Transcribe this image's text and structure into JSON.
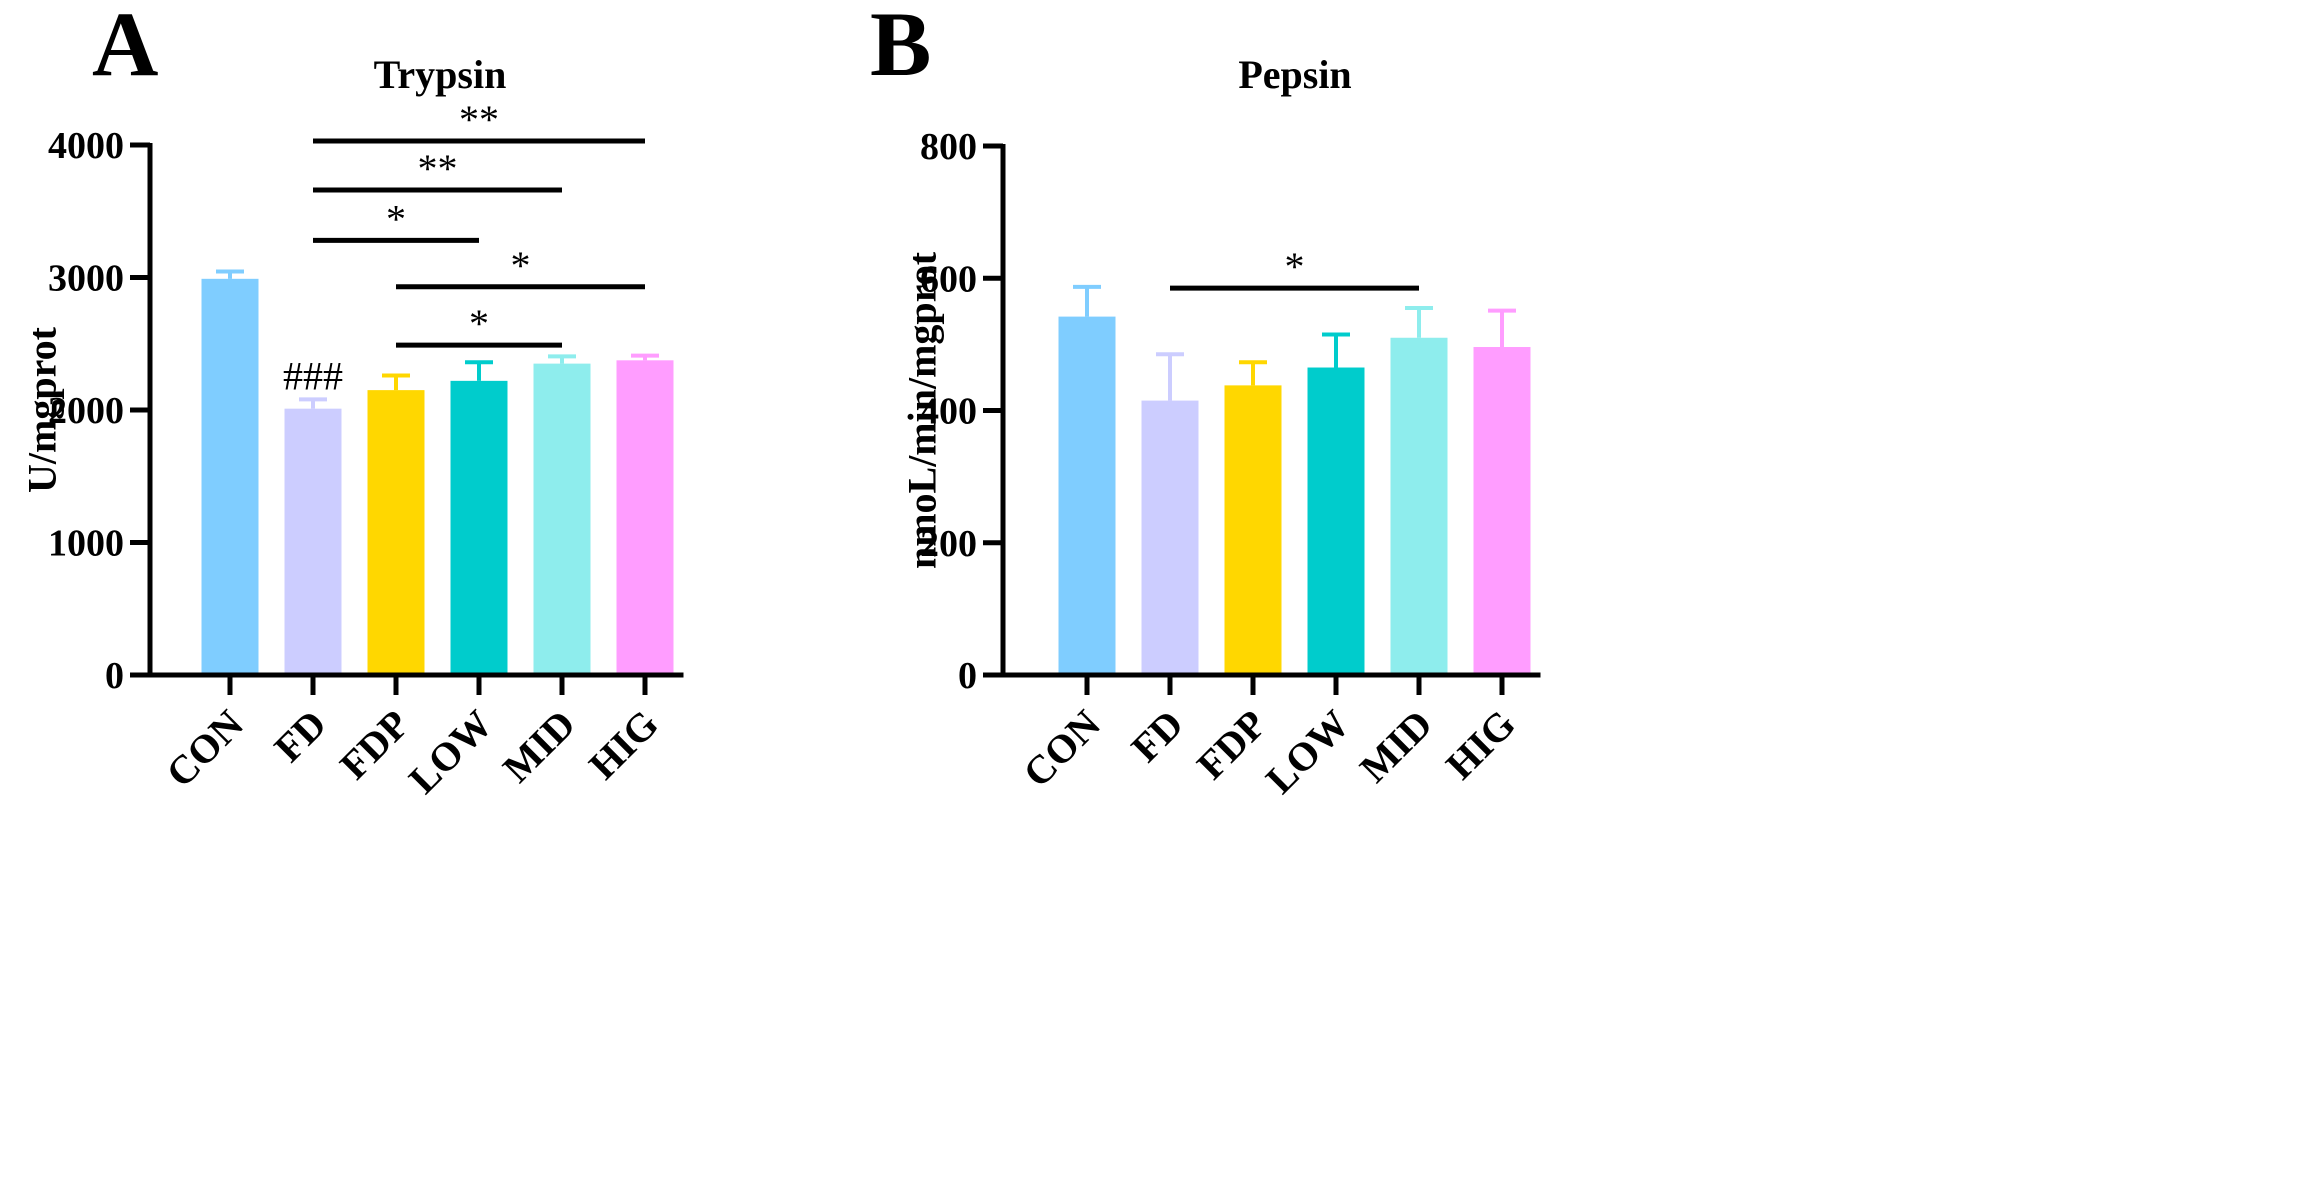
{
  "chart_data": [
    {
      "panel_label": "A",
      "type": "bar",
      "title": "Trypsin",
      "ylabel": "U/mgprot",
      "xlabel": "",
      "ylim": [
        0,
        4000
      ],
      "yticks": [
        0,
        1000,
        2000,
        3000,
        4000
      ],
      "yticks_text": [
        "0",
        "1000",
        "2000",
        "3000",
        "4000"
      ],
      "categories": [
        "CON",
        "FD",
        "FDP",
        "LOW",
        "MID",
        "HIG"
      ],
      "values": [
        2990,
        2010,
        2150,
        2220,
        2350,
        2375
      ],
      "errors": [
        55,
        70,
        110,
        140,
        55,
        35
      ],
      "colors": [
        "#7fcdff",
        "#cccdff",
        "#ffd700",
        "#00cccc",
        "#8eeded",
        "#ff9dff"
      ],
      "bar_annotations": [
        {
          "category": "FD",
          "text": "###"
        }
      ],
      "comparisons": [
        {
          "from": "FD",
          "to": "HIG",
          "y": 4030,
          "label": "**"
        },
        {
          "from": "FD",
          "to": "MID",
          "y": 3660,
          "label": "**"
        },
        {
          "from": "FD",
          "to": "LOW",
          "y": 3280,
          "label": "*"
        },
        {
          "from": "FDP",
          "to": "HIG",
          "y": 2930,
          "label": "*"
        },
        {
          "from": "FDP",
          "to": "MID",
          "y": 2490,
          "label": "*"
        }
      ]
    },
    {
      "panel_label": "B",
      "type": "bar",
      "title": "Pepsin",
      "ylabel": "nmoL/min/mgprot",
      "xlabel": "",
      "ylim": [
        0,
        800
      ],
      "yticks": [
        0,
        200,
        400,
        600,
        800
      ],
      "yticks_text": [
        "0",
        "200",
        "400",
        "600",
        "800"
      ],
      "categories": [
        "CON",
        "FD",
        "FDP",
        "LOW",
        "MID",
        "HIG"
      ],
      "values": [
        542,
        415,
        438,
        465,
        510,
        496
      ],
      "errors": [
        45,
        70,
        35,
        50,
        45,
        55
      ],
      "colors": [
        "#7fcdff",
        "#cccdff",
        "#ffd700",
        "#00cccc",
        "#8eeded",
        "#ff9dff"
      ],
      "bar_annotations": [],
      "comparisons": [
        {
          "from": "FD",
          "to": "MID",
          "y": 585,
          "label": "*"
        }
      ]
    }
  ]
}
